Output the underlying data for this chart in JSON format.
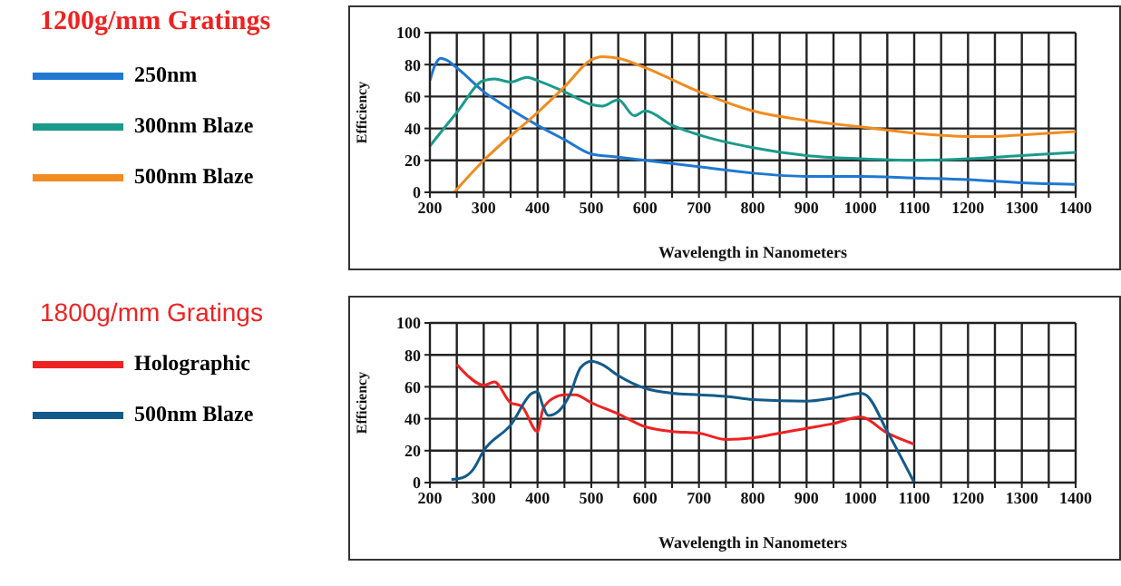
{
  "chart_data": [
    {
      "type": "line",
      "title": "1200g/mm Gratings",
      "xlabel": "Wavelength in Nanometers",
      "ylabel": "Efficiency",
      "legend": "left",
      "grid": true,
      "marker": "none",
      "line_style": "solid",
      "xlim": [
        200,
        1400
      ],
      "ylim": [
        0,
        100
      ],
      "xticks": [
        200,
        {
          "value": 250,
          "label": null
        },
        300,
        {
          "value": 350,
          "label": null
        },
        400,
        {
          "value": 450,
          "label": null
        },
        500,
        {
          "value": 550,
          "label": null
        },
        600,
        {
          "value": 650,
          "label": null
        },
        700,
        {
          "value": 750,
          "label": null
        },
        800,
        {
          "value": 850,
          "label": null
        },
        900,
        {
          "value": 950,
          "label": null
        },
        1000,
        {
          "value": 1050,
          "label": null
        },
        1100,
        {
          "value": 1150,
          "label": null
        },
        1200,
        {
          "value": 1250,
          "label": null
        },
        1300,
        {
          "value": 1350,
          "label": null
        },
        1400
      ],
      "yticks": [
        0,
        20,
        40,
        60,
        80,
        100
      ],
      "series": [
        {
          "name": "250nm",
          "color": "#1f78d1",
          "x": [
            200,
            210,
            220,
            230,
            250,
            300,
            350,
            400,
            450,
            500,
            550,
            600,
            700,
            800,
            900,
            1000,
            1100,
            1200,
            1300,
            1400
          ],
          "values": [
            70,
            80,
            84,
            83,
            78,
            63,
            52,
            42,
            33,
            24,
            22,
            20,
            16,
            12,
            10,
            10,
            9,
            8,
            6,
            5
          ]
        },
        {
          "name": "300nm Blaze",
          "color": "#1a9a8a",
          "x": [
            200,
            250,
            300,
            320,
            350,
            380,
            400,
            450,
            500,
            520,
            550,
            580,
            600,
            650,
            700,
            800,
            900,
            1000,
            1100,
            1200,
            1300,
            1400
          ],
          "values": [
            29,
            50,
            70,
            71,
            69,
            72,
            70,
            63,
            55,
            54,
            58,
            48,
            51,
            42,
            36,
            28,
            23,
            21,
            20,
            21,
            23,
            25
          ]
        },
        {
          "name": "500nm Blaze",
          "color": "#f08c20",
          "x": [
            245,
            300,
            400,
            450,
            500,
            520,
            550,
            600,
            700,
            800,
            900,
            1000,
            1100,
            1200,
            1250,
            1300,
            1400
          ],
          "values": [
            0,
            20,
            50,
            66,
            83,
            85,
            84,
            78,
            63,
            51,
            45,
            41,
            37,
            35,
            35,
            36,
            38
          ]
        }
      ]
    },
    {
      "type": "line",
      "title": "1800g/mm Gratings",
      "xlabel": "Wavelength in Nanometers",
      "ylabel": "Efficiency",
      "legend": "left",
      "grid": true,
      "marker": "none",
      "line_style": "solid",
      "xlim": [
        200,
        1400
      ],
      "ylim": [
        0,
        100
      ],
      "xticks": [
        200,
        {
          "value": 250,
          "label": null
        },
        300,
        {
          "value": 350,
          "label": null
        },
        400,
        {
          "value": 450,
          "label": null
        },
        500,
        {
          "value": 550,
          "label": null
        },
        600,
        {
          "value": 650,
          "label": null
        },
        700,
        {
          "value": 750,
          "label": null
        },
        800,
        {
          "value": 850,
          "label": null
        },
        900,
        {
          "value": 950,
          "label": null
        },
        1000,
        {
          "value": 1050,
          "label": null
        },
        1100,
        {
          "value": 1150,
          "label": null
        },
        1200,
        {
          "value": 1250,
          "label": null
        },
        1300,
        {
          "value": 1350,
          "label": null
        },
        1400
      ],
      "yticks": [
        0,
        20,
        40,
        60,
        80,
        100
      ],
      "series": [
        {
          "name": "Holographic",
          "color": "#ee2222",
          "x": [
            250,
            270,
            300,
            320,
            350,
            370,
            400,
            410,
            430,
            450,
            470,
            500,
            550,
            600,
            650,
            700,
            750,
            800,
            850,
            900,
            950,
            1000,
            1050,
            1100
          ],
          "values": [
            74,
            67,
            61,
            63,
            50,
            48,
            32,
            46,
            53,
            55,
            55,
            50,
            43,
            35,
            32,
            31,
            27,
            28,
            31,
            34,
            37,
            41,
            31,
            24
          ]
        },
        {
          "name": "500nm Blaze",
          "color": "#145a8a",
          "x": [
            240,
            260,
            280,
            300,
            350,
            390,
            400,
            410,
            420,
            440,
            460,
            480,
            500,
            520,
            550,
            600,
            650,
            700,
            750,
            800,
            900,
            950,
            1000,
            1010,
            1050,
            1100
          ],
          "values": [
            2,
            3,
            8,
            20,
            36,
            56,
            57,
            48,
            42,
            45,
            55,
            72,
            76,
            74,
            67,
            59,
            56,
            55,
            54,
            52,
            51,
            53,
            56,
            55,
            32,
            0
          ]
        }
      ]
    }
  ]
}
